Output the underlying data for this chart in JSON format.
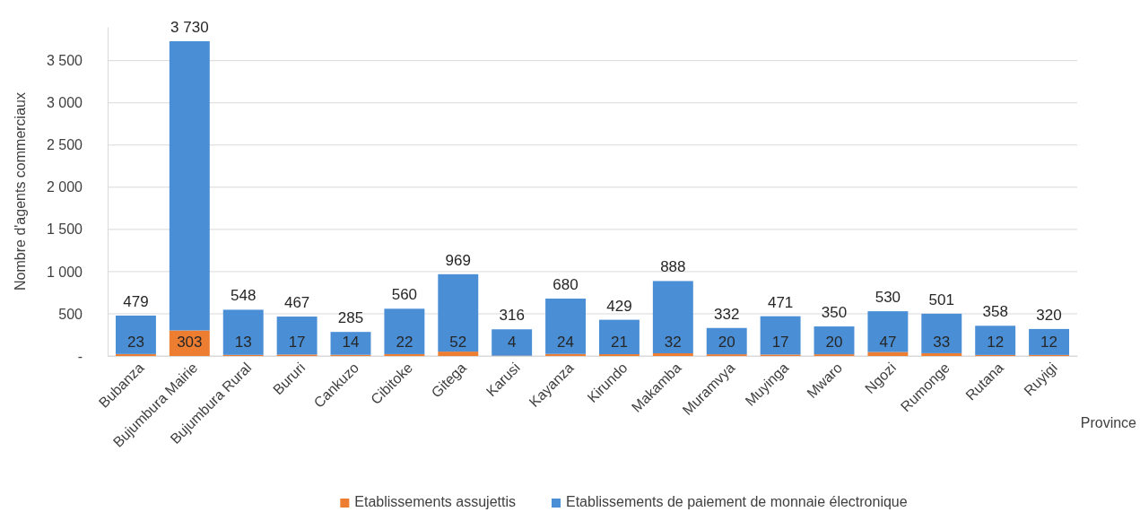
{
  "chart_data": {
    "type": "bar",
    "stacked": true,
    "xlabel": "Province",
    "ylabel": "Nombre d'agents commerciaux",
    "categories": [
      "Bubanza",
      "Bujumbura Mairie",
      "Bujumbura Rural",
      "Bururi",
      "Cankuzo",
      "Cibitoke",
      "Gitega",
      "Karusi",
      "Kayanza",
      "Kirundo",
      "Makamba",
      "Muramvya",
      "Muyinga",
      "Mwaro",
      "Ngozi",
      "Rumonge",
      "Rutana",
      "Ruyigi"
    ],
    "series": [
      {
        "name": "Etablissements assujettis",
        "color": "#ed7d31",
        "values": [
          23,
          303,
          13,
          17,
          14,
          22,
          52,
          4,
          24,
          21,
          32,
          20,
          17,
          20,
          47,
          33,
          12,
          12
        ],
        "value_labels": [
          "23",
          "303",
          "13",
          "17",
          "14",
          "22",
          "52",
          "4",
          "24",
          "21",
          "32",
          "20",
          "17",
          "20",
          "47",
          "33",
          "12",
          "12"
        ]
      },
      {
        "name": "Etablissements de paiement de monnaie électronique",
        "color": "#4a8fd6",
        "values": [
          456,
          3427,
          535,
          450,
          271,
          538,
          917,
          312,
          656,
          408,
          856,
          312,
          454,
          330,
          483,
          468,
          346,
          308
        ]
      }
    ],
    "totals": [
      "479",
      "3 730",
      "548",
      "467",
      "285",
      "560",
      "969",
      "316",
      "680",
      "429",
      "888",
      "332",
      "471",
      "350",
      "530",
      "501",
      "358",
      "320"
    ],
    "ylim": [
      0,
      3900
    ],
    "yticks": [
      {
        "value": 0,
        "label": "-"
      },
      {
        "value": 500,
        "label": "500"
      },
      {
        "value": 1000,
        "label": "1 000"
      },
      {
        "value": 1500,
        "label": "1 500"
      },
      {
        "value": 2000,
        "label": "2 000"
      },
      {
        "value": 2500,
        "label": "2 500"
      },
      {
        "value": 3000,
        "label": "3 000"
      },
      {
        "value": 3500,
        "label": "3 500"
      }
    ],
    "grid": "y",
    "legend": "bottom"
  }
}
